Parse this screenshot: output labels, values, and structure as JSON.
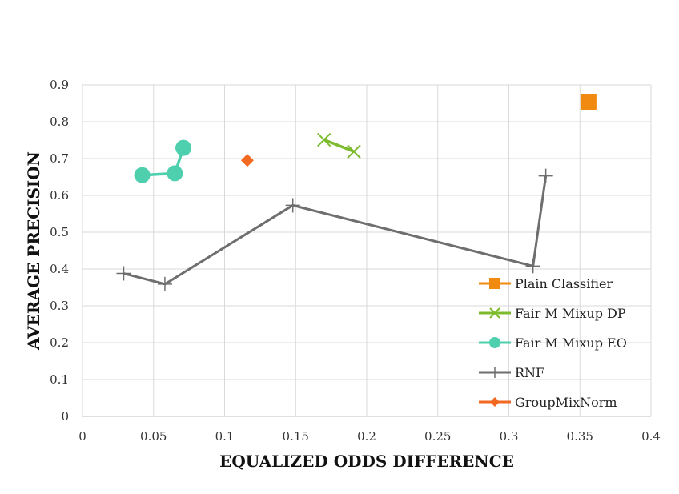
{
  "chart_data": {
    "type": "scatter",
    "title": "",
    "xlabel": "EQUALIZED ODDS DIFFERENCE",
    "ylabel": "AVERAGE PRECISION",
    "xlim": [
      0,
      0.4
    ],
    "ylim": [
      0,
      0.9
    ],
    "xticks": [
      "0",
      "0.05",
      "0.1",
      "0.15",
      "0.2",
      "0.25",
      "0.3",
      "0.35",
      "0.4"
    ],
    "yticks": [
      "0",
      "0.1",
      "0.2",
      "0.3",
      "0.4",
      "0.5",
      "0.6",
      "0.7",
      "0.8",
      "0.9"
    ],
    "grid": true,
    "legend_position": "right",
    "series": [
      {
        "name": "Plain Classifier",
        "marker": "square",
        "color": "#F08A10",
        "x": [
          0.356
        ],
        "y": [
          0.853
        ]
      },
      {
        "name": "Fair M Mixup DP",
        "marker": "x",
        "color": "#7DBB2E",
        "x": [
          0.17,
          0.191
        ],
        "y": [
          0.751,
          0.719
        ]
      },
      {
        "name": "Fair M Mixup EO",
        "marker": "circle",
        "color": "#4ECFAE",
        "x": [
          0.042,
          0.065,
          0.071
        ],
        "y": [
          0.655,
          0.66,
          0.729
        ]
      },
      {
        "name": "RNF",
        "marker": "plus",
        "color": "#6E6E6E",
        "x": [
          0.029,
          0.058,
          0.148,
          0.317,
          0.326
        ],
        "y": [
          0.388,
          0.359,
          0.573,
          0.408,
          0.653
        ]
      },
      {
        "name": "GroupMixNorm",
        "marker": "diamond",
        "color": "#F26A21",
        "x": [
          0.116
        ],
        "y": [
          0.695
        ]
      }
    ]
  }
}
